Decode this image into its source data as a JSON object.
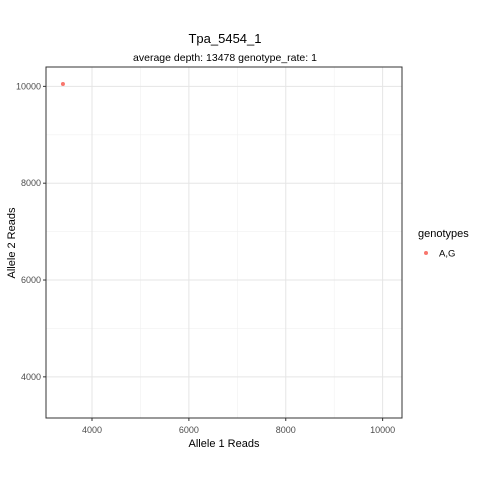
{
  "chart_data": {
    "type": "scatter",
    "title": "Tpa_5454_1",
    "subtitle": "average depth:  13478  genotype_rate:  1",
    "xlabel": "Allele 1 Reads",
    "ylabel": "Allele 2 Reads",
    "xlim": [
      3050,
      10400
    ],
    "ylim": [
      3150,
      10400
    ],
    "x_ticks": [
      4000,
      6000,
      8000,
      10000
    ],
    "y_ticks": [
      4000,
      6000,
      8000,
      10000
    ],
    "x_minor": [
      5000,
      7000,
      9000
    ],
    "y_minor": [
      5000,
      7000,
      9000
    ],
    "grid": true,
    "legend_title": "genotypes",
    "legend_position": "right",
    "series": [
      {
        "name": "A,G",
        "color": "#F8766D",
        "points": [
          {
            "x": 3400,
            "y": 10050
          }
        ]
      }
    ]
  }
}
